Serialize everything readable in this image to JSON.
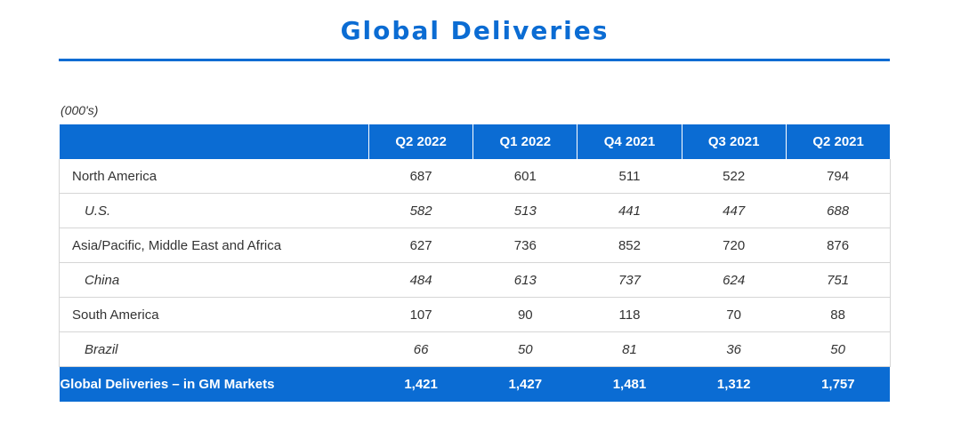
{
  "title": "Global Deliveries",
  "units_note": "(000's)",
  "columns": [
    "Q2 2022",
    "Q1 2022",
    "Q4 2021",
    "Q3 2021",
    "Q2 2021"
  ],
  "rows": [
    {
      "label": "North America",
      "values": [
        "687",
        "601",
        "511",
        "522",
        "794"
      ],
      "sub": false
    },
    {
      "label": "U.S.",
      "values": [
        "582",
        "513",
        "441",
        "447",
        "688"
      ],
      "sub": true
    },
    {
      "label": "Asia/Pacific, Middle East and Africa",
      "values": [
        "627",
        "736",
        "852",
        "720",
        "876"
      ],
      "sub": false
    },
    {
      "label": "China",
      "values": [
        "484",
        "613",
        "737",
        "624",
        "751"
      ],
      "sub": true
    },
    {
      "label": "South America",
      "values": [
        "107",
        "90",
        "118",
        "70",
        "88"
      ],
      "sub": false
    },
    {
      "label": "Brazil",
      "values": [
        "66",
        "50",
        "81",
        "36",
        "50"
      ],
      "sub": true
    }
  ],
  "total": {
    "label": "Global Deliveries – in GM Markets",
    "values": [
      "1,421",
      "1,427",
      "1,481",
      "1,312",
      "1,757"
    ]
  },
  "colors": {
    "accent": "#0b6cd3",
    "text": "#333333",
    "grid": "#d6d6d6"
  }
}
